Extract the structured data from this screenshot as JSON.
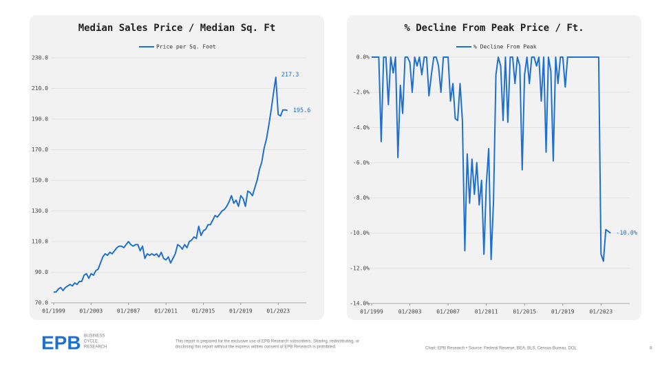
{
  "chart_data": [
    {
      "type": "line",
      "title": "Median Sales Price / Median Sq. Ft",
      "x": [
        "01/1999",
        "04/1999",
        "07/1999",
        "10/1999",
        "01/2000",
        "04/2000",
        "07/2000",
        "10/2000",
        "01/2001",
        "04/2001",
        "07/2001",
        "10/2001",
        "01/2002",
        "04/2002",
        "07/2002",
        "10/2002",
        "01/2003",
        "04/2003",
        "07/2003",
        "10/2003",
        "01/2004",
        "04/2004",
        "07/2004",
        "10/2004",
        "01/2005",
        "04/2005",
        "07/2005",
        "10/2005",
        "01/2006",
        "04/2006",
        "07/2006",
        "10/2006",
        "01/2007",
        "04/2007",
        "07/2007",
        "10/2007",
        "01/2008",
        "04/2008",
        "07/2008",
        "10/2008",
        "01/2009",
        "04/2009",
        "07/2009",
        "10/2009",
        "01/2010",
        "04/2010",
        "07/2010",
        "10/2010",
        "01/2011",
        "04/2011",
        "07/2011",
        "10/2011",
        "01/2012",
        "04/2012",
        "07/2012",
        "10/2012",
        "01/2013",
        "04/2013",
        "07/2013",
        "10/2013",
        "01/2014",
        "04/2014",
        "07/2014",
        "10/2014",
        "01/2015",
        "04/2015",
        "07/2015",
        "10/2015",
        "01/2016",
        "04/2016",
        "07/2016",
        "10/2016",
        "01/2017",
        "04/2017",
        "07/2017",
        "10/2017",
        "01/2018",
        "04/2018",
        "07/2018",
        "10/2018",
        "01/2019",
        "04/2019",
        "07/2019",
        "10/2019",
        "01/2020",
        "04/2020",
        "07/2020",
        "10/2020",
        "01/2021",
        "04/2021",
        "07/2021",
        "10/2021",
        "01/2022",
        "04/2022",
        "07/2022",
        "10/2022",
        "01/2023",
        "04/2023",
        "07/2023",
        "10/2023",
        "01/2024"
      ],
      "series": [
        {
          "name": "Price per Sq. Foot",
          "color": "#1f6fcf",
          "values": [
            77,
            77,
            79,
            80,
            78,
            80,
            81,
            82,
            81,
            83,
            82,
            84,
            84,
            88,
            89,
            86,
            89,
            88,
            91,
            92,
            96,
            100,
            102,
            101,
            103,
            102,
            104,
            106,
            107,
            107,
            106,
            108,
            110,
            108,
            107,
            108,
            108,
            104,
            107,
            99,
            102,
            101,
            102,
            101,
            102,
            100,
            103,
            99,
            98,
            100,
            96,
            99,
            102,
            108,
            107,
            105,
            108,
            106,
            110,
            111,
            113,
            112,
            120,
            114,
            117,
            118,
            121,
            121,
            124,
            127,
            126,
            128,
            130,
            131,
            133,
            136,
            140,
            135,
            137,
            133,
            140,
            138,
            133,
            143,
            142,
            140,
            145,
            150,
            157,
            162,
            171,
            177,
            186,
            196,
            207,
            217.3,
            193,
            192,
            196,
            196,
            195.6
          ]
        }
      ],
      "annotations": [
        {
          "x": "10/2022",
          "text": "217.3"
        },
        {
          "x": "01/2024",
          "text": "195.6"
        }
      ],
      "xlim": [
        "01/1999",
        "01/2026"
      ],
      "xticks": [
        "01/1999",
        "01/2003",
        "01/2007",
        "01/2011",
        "01/2015",
        "01/2019",
        "01/2023"
      ],
      "ylim": [
        70,
        230
      ],
      "yticks": [
        {
          "value": 70,
          "label": "70.0"
        },
        {
          "value": 90,
          "label": "90.0"
        },
        {
          "value": 110,
          "label": "110.0"
        },
        {
          "value": 130,
          "label": "130.0"
        },
        {
          "value": 150,
          "label": "150.0"
        },
        {
          "value": 170,
          "label": "170.0"
        },
        {
          "value": 190,
          "label": "190.0"
        },
        {
          "value": 210,
          "label": "210.0"
        },
        {
          "value": 230,
          "label": "230.0"
        }
      ],
      "grid": true
    },
    {
      "type": "line",
      "title": "% Decline From Peak Price / Ft.",
      "x": [
        "01/1999",
        "04/1999",
        "07/1999",
        "10/1999",
        "01/2000",
        "04/2000",
        "07/2000",
        "10/2000",
        "01/2001",
        "04/2001",
        "07/2001",
        "10/2001",
        "01/2002",
        "04/2002",
        "07/2002",
        "10/2002",
        "01/2003",
        "04/2003",
        "07/2003",
        "10/2003",
        "01/2004",
        "04/2004",
        "07/2004",
        "10/2004",
        "01/2005",
        "04/2005",
        "07/2005",
        "10/2005",
        "01/2006",
        "04/2006",
        "07/2006",
        "10/2006",
        "01/2007",
        "04/2007",
        "07/2007",
        "10/2007",
        "01/2008",
        "04/2008",
        "07/2008",
        "10/2008",
        "01/2009",
        "04/2009",
        "07/2009",
        "10/2009",
        "01/2010",
        "04/2010",
        "07/2010",
        "10/2010",
        "01/2011",
        "04/2011",
        "07/2011",
        "10/2011",
        "01/2012",
        "04/2012",
        "07/2012",
        "10/2012",
        "01/2013",
        "04/2013",
        "07/2013",
        "10/2013",
        "01/2014",
        "04/2014",
        "07/2014",
        "10/2014",
        "01/2015",
        "04/2015",
        "07/2015",
        "10/2015",
        "01/2016",
        "04/2016",
        "07/2016",
        "10/2016",
        "01/2017",
        "04/2017",
        "07/2017",
        "10/2017",
        "01/2018",
        "04/2018",
        "07/2018",
        "10/2018",
        "01/2019",
        "04/2019",
        "07/2019",
        "10/2019",
        "01/2020",
        "04/2020",
        "07/2020",
        "10/2020",
        "01/2021",
        "04/2021",
        "07/2021",
        "10/2021",
        "01/2022",
        "04/2022",
        "07/2022",
        "10/2022",
        "01/2023",
        "04/2023",
        "07/2023",
        "10/2023",
        "01/2024"
      ],
      "series": [
        {
          "name": "% Decline From Peak",
          "color": "#1f6fcf",
          "values": [
            0,
            0,
            0,
            0,
            -4.8,
            0,
            0,
            -2.7,
            0,
            -0.9,
            0,
            -5.7,
            -1.6,
            -3.2,
            0,
            0,
            -0.3,
            -2,
            0,
            -0.5,
            0,
            -1,
            0,
            0,
            -2.2,
            -1,
            0,
            0,
            -0.5,
            -2,
            0,
            0,
            0,
            -2.5,
            -1.5,
            -3.5,
            -3.6,
            -1.5,
            -3.6,
            -11,
            -5.5,
            -8.3,
            -5.8,
            -7.8,
            -6,
            -8.4,
            -7,
            -11.2,
            -7.2,
            -5.2,
            -11.5,
            -8.2,
            -1,
            0,
            -0.5,
            -3.6,
            0,
            -3.7,
            0,
            0,
            -1.5,
            0,
            -0.5,
            -6.4,
            -1,
            0,
            -1.5,
            0,
            0,
            -0.5,
            0,
            -2.5,
            0,
            -5.4,
            0,
            -0.8,
            -5.9,
            0,
            -1.5,
            0,
            0,
            -1.7,
            0,
            0,
            0,
            0,
            0,
            0,
            0,
            0,
            0,
            0,
            0,
            0,
            0,
            0,
            -11.2,
            -11.6,
            -9.8,
            -9.9,
            -10.0
          ]
        }
      ],
      "annotations": [
        {
          "x": "01/2024",
          "text": "-10.0%"
        }
      ],
      "xlim": [
        "01/1999",
        "01/2026"
      ],
      "xticks": [
        "01/1999",
        "01/2003",
        "01/2007",
        "01/2011",
        "01/2015",
        "01/2019",
        "01/2023"
      ],
      "ylim": [
        -14,
        0
      ],
      "yticks": [
        {
          "value": 0,
          "label": "0.0%"
        },
        {
          "value": -2,
          "label": "-2.0%"
        },
        {
          "value": -4,
          "label": "-4.0%"
        },
        {
          "value": -6,
          "label": "-6.0%"
        },
        {
          "value": -8,
          "label": "-8.0%"
        },
        {
          "value": -10,
          "label": "-10.0%"
        },
        {
          "value": -12,
          "label": "-12.0%"
        },
        {
          "value": -14,
          "label": "-14.0%"
        }
      ],
      "grid": true
    }
  ],
  "footer": {
    "logo": "EPB",
    "tagline": [
      "BUSINESS",
      "CYCLE",
      "RESEARCH"
    ],
    "disclaimer": [
      "This report is prepared for the exclusive use of EPB Research subscribers. Sharing, redistributing, or",
      "disclosing this report without the express written consent of EPB Research is prohibited."
    ],
    "source": "Chart: EPB Research  •  Source: Federal Reserve, BEA, BLS, Census Bureau, DOL",
    "page": "8"
  }
}
